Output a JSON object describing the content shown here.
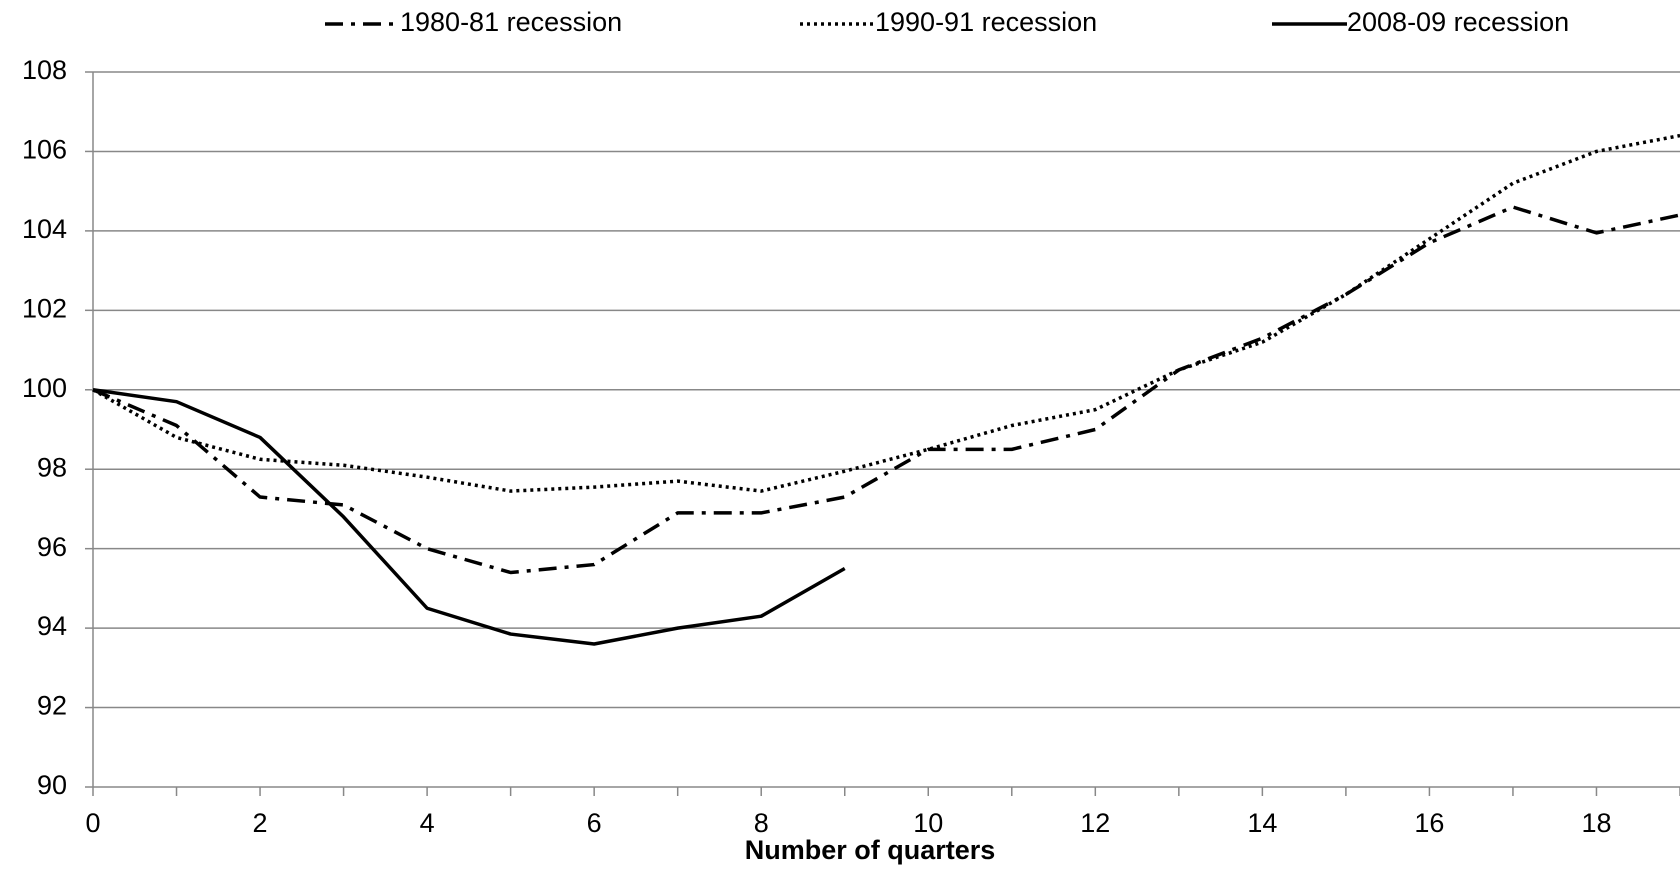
{
  "chart_data": {
    "type": "line",
    "x_label": "Number of quarters",
    "x": [
      0,
      1,
      2,
      3,
      4,
      5,
      6,
      7,
      8,
      9,
      10,
      11,
      12,
      13,
      14,
      15,
      16,
      17,
      18,
      19
    ],
    "series": [
      {
        "name": "1980-81 recession",
        "color": "#000000",
        "line_style": "dash-dot",
        "values": [
          100,
          99.1,
          97.3,
          97.1,
          96.0,
          95.4,
          95.6,
          96.9,
          96.9,
          97.3,
          98.5,
          98.5,
          99.0,
          100.5,
          101.3,
          102.4,
          103.7,
          104.6,
          103.95,
          104.4
        ]
      },
      {
        "name": "1990-91 recession",
        "color": "#000000",
        "line_style": "dotted",
        "values": [
          100,
          98.8,
          98.25,
          98.1,
          97.8,
          97.45,
          97.55,
          97.7,
          97.45,
          97.95,
          98.5,
          99.1,
          99.5,
          100.5,
          101.2,
          102.4,
          103.8,
          105.2,
          106.0,
          106.4
        ]
      },
      {
        "name": "2008-09 recession",
        "color": "#000000",
        "line_style": "solid",
        "values": [
          100,
          99.7,
          98.8,
          96.8,
          94.5,
          93.85,
          93.6,
          94.0,
          94.3,
          95.5,
          null,
          null,
          null,
          null,
          null,
          null,
          null,
          null,
          null,
          null
        ]
      }
    ],
    "xlim": [
      0,
      19
    ],
    "xticks": [
      0,
      2,
      4,
      6,
      8,
      10,
      12,
      14,
      16,
      18
    ],
    "ylim": [
      90,
      108
    ],
    "yticks": [
      90,
      92,
      94,
      96,
      98,
      100,
      102,
      104,
      106,
      108
    ],
    "grid": true,
    "legend": "top"
  }
}
